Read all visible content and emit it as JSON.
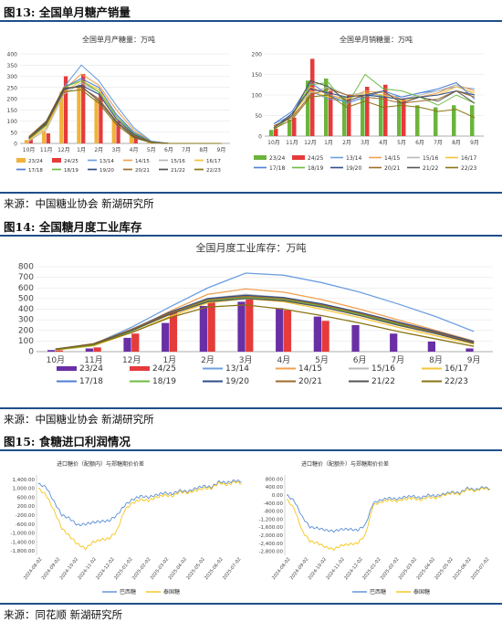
{
  "figures": [
    {
      "title": "图13: 全国单月糖产销量",
      "source": "来源：中国糖业协会  新湖研究所"
    },
    {
      "title": "图14: 全国糖月度工业库存",
      "source": "来源：中国糖业协会  新湖研究所"
    },
    {
      "title": "图15: 食糖进口利润情况",
      "source": "来源：同花顺  新湖研究所"
    }
  ],
  "colors": {
    "23/24": "#6a2fa5",
    "24/25": "#e53b3b",
    "13/14": "#6e9fe0",
    "14/15": "#f0a050",
    "15/16": "#b9b9b9",
    "16/17": "#f3c53a",
    "17/18": "#4c7fd4",
    "18/19": "#6dbb45",
    "19/20": "#2f4f8a",
    "20/21": "#a06a2c",
    "21/22": "#555555",
    "22/23": "#8a7415",
    "production_fig13": "#f0b23a",
    "sales_fig13": "#6cb43c",
    "brazil": "#5b8ed6",
    "thai": "#f5c518",
    "rule": "#1f4f8a"
  },
  "chart_data": [
    {
      "type": "bar",
      "title": "全国单月产糖量：万吨",
      "categories": [
        "10月",
        "11月",
        "12月",
        "1月",
        "2月",
        "3月",
        "4月",
        "5月",
        "6月",
        "7月",
        "8月",
        "9月"
      ],
      "ylim": [
        0,
        400
      ],
      "yticks": [
        0,
        50,
        100,
        150,
        200,
        250,
        300,
        350,
        400
      ],
      "legend": [
        "23/24",
        "24/25",
        "13/14",
        "14/15",
        "15/16",
        "16/17",
        "17/18",
        "18/19",
        "19/20",
        "20/21",
        "21/22",
        "22/23"
      ],
      "legend_position": "bottom",
      "series": [
        {
          "name": "23/24",
          "kind": "bar",
          "color_key": "production_fig13",
          "values": [
            15,
            55,
            230,
            260,
            200,
            110,
            40,
            5,
            0,
            0,
            0,
            0
          ]
        },
        {
          "name": "24/25",
          "kind": "bar",
          "color_key": "24/25",
          "values": [
            20,
            45,
            300,
            310,
            230,
            100,
            35,
            3,
            0,
            0,
            0,
            0
          ]
        },
        {
          "name": "13/14",
          "kind": "line",
          "values": [
            20,
            80,
            250,
            350,
            280,
            170,
            70,
            10,
            0,
            0,
            0,
            0
          ]
        },
        {
          "name": "14/15",
          "kind": "line",
          "values": [
            15,
            70,
            240,
            310,
            260,
            150,
            60,
            8,
            0,
            0,
            0,
            0
          ]
        },
        {
          "name": "15/16",
          "kind": "line",
          "values": [
            10,
            60,
            220,
            270,
            230,
            130,
            50,
            5,
            0,
            0,
            0,
            0
          ]
        },
        {
          "name": "16/17",
          "kind": "line",
          "values": [
            15,
            70,
            230,
            280,
            240,
            120,
            45,
            5,
            0,
            0,
            0,
            0
          ]
        },
        {
          "name": "17/18",
          "kind": "line",
          "values": [
            20,
            85,
            250,
            290,
            250,
            130,
            50,
            8,
            0,
            0,
            0,
            0
          ]
        },
        {
          "name": "18/19",
          "kind": "line",
          "values": [
            20,
            80,
            250,
            280,
            230,
            120,
            45,
            6,
            0,
            0,
            0,
            0
          ]
        },
        {
          "name": "19/20",
          "kind": "line",
          "values": [
            25,
            90,
            240,
            260,
            220,
            110,
            40,
            5,
            0,
            0,
            0,
            0
          ]
        },
        {
          "name": "20/21",
          "kind": "line",
          "values": [
            30,
            100,
            250,
            250,
            200,
            100,
            35,
            5,
            0,
            0,
            0,
            0
          ]
        },
        {
          "name": "21/22",
          "kind": "line",
          "values": [
            25,
            95,
            245,
            255,
            190,
            95,
            30,
            4,
            0,
            0,
            0,
            0
          ]
        },
        {
          "name": "22/23",
          "kind": "line",
          "values": [
            20,
            85,
            230,
            240,
            180,
            85,
            25,
            3,
            0,
            0,
            0,
            0
          ]
        }
      ]
    },
    {
      "type": "bar",
      "title": "全国单月销糖量：万吨",
      "categories": [
        "10月",
        "11月",
        "12月",
        "1月",
        "2月",
        "3月",
        "4月",
        "5月",
        "6月",
        "7月",
        "8月",
        "9月"
      ],
      "ylim": [
        0,
        200
      ],
      "yticks": [
        0,
        50,
        100,
        150,
        200
      ],
      "legend": [
        "23/24",
        "24/25",
        "13/14",
        "14/15",
        "15/16",
        "16/17",
        "17/18",
        "18/19",
        "19/20",
        "20/21",
        "21/22",
        "22/23"
      ],
      "legend_position": "bottom",
      "series": [
        {
          "name": "23/24",
          "kind": "bar",
          "color_key": "sales_fig13",
          "values": [
            15,
            40,
            135,
            140,
            95,
            95,
            100,
            90,
            75,
            70,
            75,
            75
          ]
        },
        {
          "name": "24/25",
          "kind": "bar",
          "color_key": "24/25",
          "values": [
            18,
            45,
            188,
            110,
            100,
            120,
            125,
            90,
            0,
            0,
            0,
            0
          ]
        },
        {
          "name": "13/14",
          "kind": "line",
          "values": [
            30,
            50,
            110,
            90,
            85,
            100,
            100,
            95,
            105,
            110,
            120,
            115
          ]
        },
        {
          "name": "14/15",
          "kind": "line",
          "values": [
            25,
            45,
            120,
            100,
            90,
            110,
            105,
            90,
            95,
            105,
            125,
            110
          ]
        },
        {
          "name": "15/16",
          "kind": "line",
          "values": [
            20,
            55,
            105,
            120,
            100,
            105,
            95,
            90,
            100,
            110,
            125,
            100
          ]
        },
        {
          "name": "16/17",
          "kind": "line",
          "values": [
            22,
            50,
            110,
            95,
            90,
            105,
            100,
            85,
            95,
            100,
            120,
            105
          ]
        },
        {
          "name": "17/18",
          "kind": "line",
          "values": [
            30,
            60,
            130,
            100,
            80,
            95,
            110,
            95,
            105,
            115,
            130,
            90
          ]
        },
        {
          "name": "18/19",
          "kind": "line",
          "values": [
            15,
            50,
            125,
            130,
            75,
            150,
            115,
            110,
            95,
            75,
            100,
            80
          ]
        },
        {
          "name": "19/20",
          "kind": "line",
          "values": [
            20,
            55,
            115,
            105,
            95,
            100,
            95,
            90,
            95,
            100,
            110,
            100
          ]
        },
        {
          "name": "20/21",
          "kind": "line",
          "values": [
            25,
            45,
            100,
            115,
            100,
            95,
            90,
            80,
            85,
            90,
            110,
            95
          ]
        },
        {
          "name": "21/22",
          "kind": "line",
          "values": [
            20,
            50,
            135,
            120,
            85,
            100,
            110,
            80,
            95,
            85,
            110,
            80
          ]
        },
        {
          "name": "22/23",
          "kind": "line",
          "values": [
            18,
            40,
            95,
            100,
            70,
            85,
            70,
            75,
            70,
            60,
            65,
            45
          ]
        }
      ]
    },
    {
      "type": "bar",
      "title": "全国月度工业库存：万吨",
      "categories": [
        "10月",
        "11月",
        "12月",
        "1月",
        "2月",
        "3月",
        "4月",
        "5月",
        "6月",
        "7月",
        "8月",
        "9月"
      ],
      "ylim": [
        0,
        800
      ],
      "yticks": [
        0,
        100,
        200,
        300,
        400,
        500,
        600,
        700,
        800
      ],
      "legend": [
        "23/24",
        "24/25",
        "13/14",
        "14/15",
        "15/16",
        "16/17",
        "17/18",
        "18/19",
        "19/20",
        "20/21",
        "21/22",
        "22/23"
      ],
      "legend_position": "bottom",
      "series": [
        {
          "name": "23/24",
          "kind": "bar",
          "color_key": "23/24",
          "values": [
            15,
            30,
            130,
            270,
            430,
            470,
            410,
            330,
            250,
            170,
            95,
            30
          ]
        },
        {
          "name": "24/25",
          "kind": "bar",
          "color_key": "24/25",
          "values": [
            12,
            40,
            170,
            370,
            500,
            490,
            390,
            290,
            0,
            0,
            0,
            0
          ]
        },
        {
          "name": "13/14",
          "kind": "line",
          "values": [
            20,
            70,
            230,
            420,
            600,
            740,
            720,
            650,
            560,
            450,
            330,
            190
          ]
        },
        {
          "name": "14/15",
          "kind": "line",
          "values": [
            20,
            60,
            200,
            380,
            540,
            590,
            560,
            490,
            400,
            300,
            200,
            100
          ]
        },
        {
          "name": "15/16",
          "kind": "line",
          "values": [
            15,
            55,
            190,
            360,
            500,
            540,
            510,
            440,
            350,
            260,
            170,
            80
          ]
        },
        {
          "name": "16/17",
          "kind": "line",
          "values": [
            15,
            55,
            180,
            330,
            460,
            500,
            470,
            400,
            320,
            230,
            150,
            70
          ]
        },
        {
          "name": "17/18",
          "kind": "line",
          "values": [
            20,
            65,
            200,
            360,
            490,
            520,
            500,
            440,
            370,
            280,
            190,
            90
          ]
        },
        {
          "name": "18/19",
          "kind": "line",
          "values": [
            18,
            60,
            195,
            350,
            480,
            510,
            490,
            430,
            350,
            260,
            170,
            80
          ]
        },
        {
          "name": "19/20",
          "kind": "line",
          "values": [
            22,
            70,
            210,
            370,
            500,
            530,
            510,
            450,
            370,
            280,
            190,
            95
          ]
        },
        {
          "name": "20/21",
          "kind": "line",
          "values": [
            25,
            75,
            210,
            360,
            490,
            520,
            500,
            440,
            360,
            270,
            180,
            85
          ]
        },
        {
          "name": "21/22",
          "kind": "line",
          "values": [
            25,
            70,
            200,
            350,
            470,
            500,
            480,
            420,
            340,
            250,
            170,
            80
          ]
        },
        {
          "name": "22/23",
          "kind": "line",
          "values": [
            20,
            65,
            180,
            320,
            420,
            440,
            400,
            340,
            270,
            190,
            120,
            50
          ]
        }
      ]
    },
    {
      "type": "line",
      "title": "进口糖价（配额内）与郑糖期价价差",
      "ylim": [
        -2000,
        1600
      ],
      "yticks": [
        1400,
        1000,
        600,
        200,
        -200,
        -600,
        -1000,
        -1400,
        -1800
      ],
      "ytick_labels": [
        "1,400.00",
        "1,000.00",
        "600.00",
        "200.00",
        "-200.00",
        "-600.00",
        "-1,000.00",
        "-1,400.00",
        "-1,800.00"
      ],
      "x_labels": [
        "2024-08-02",
        "2024-09-02",
        "2024-10-02",
        "2024-11-02",
        "2024-12-02",
        "2025-01-02",
        "2025-02-02",
        "2025-03-02",
        "2025-04-02",
        "2025-05-02",
        "2025-06-02",
        "2025-07-02"
      ],
      "legend": [
        "巴西糖",
        "泰国糖"
      ],
      "legend_position": "bottom",
      "series": [
        {
          "name": "巴西糖",
          "color_key": "brazil",
          "values": [
            1200,
            1050,
            400,
            -200,
            -350,
            -650,
            -600,
            -520,
            -480,
            -450,
            -200,
            250,
            500,
            650,
            600,
            700,
            800,
            750,
            900,
            850,
            1000,
            1100,
            1050,
            1300,
            1250,
            1350,
            1300
          ]
        },
        {
          "name": "泰国糖",
          "color_key": "thai",
          "values": [
            1000,
            700,
            0,
            -800,
            -1150,
            -1500,
            -1700,
            -1400,
            -1300,
            -1250,
            -900,
            50,
            350,
            500,
            450,
            600,
            700,
            650,
            850,
            800,
            900,
            1000,
            1000,
            1250,
            1150,
            1300,
            1200
          ]
        }
      ]
    },
    {
      "type": "line",
      "title": "进口糖价（配额外）与郑糖期价价差",
      "ylim": [
        -3000,
        1000
      ],
      "yticks": [
        800,
        400,
        0,
        -400,
        -800,
        -1200,
        -1600,
        -2000,
        -2400,
        -2800
      ],
      "ytick_labels": [
        "800.00",
        "400.00",
        "0.00",
        "-400.00",
        "-800.00",
        "-1,200.00",
        "-1,600.00",
        "-2,000.00",
        "-2,400.00",
        "-2,800.00"
      ],
      "x_labels": [
        "2024-08-02",
        "2024-09-02",
        "2024-10-02",
        "2024-11-02",
        "2024-12-02",
        "2025-01-02",
        "2025-02-02",
        "2025-03-02",
        "2025-04-02",
        "2025-05-02",
        "2025-06-02",
        "2025-07-02"
      ],
      "legend": [
        "巴西糖",
        "泰国糖"
      ],
      "legend_position": "bottom",
      "series": [
        {
          "name": "巴西糖",
          "color_key": "brazil",
          "values": [
            0,
            -300,
            -1100,
            -1600,
            -1650,
            -1750,
            -1800,
            -1700,
            -1700,
            -1750,
            -1500,
            -400,
            -250,
            -150,
            -200,
            -100,
            -50,
            -150,
            0,
            -50,
            50,
            150,
            100,
            350,
            250,
            400,
            300
          ]
        },
        {
          "name": "泰国糖",
          "color_key": "thai",
          "values": [
            -200,
            -700,
            -1800,
            -2300,
            -2400,
            -2600,
            -2700,
            -2500,
            -2450,
            -2400,
            -2000,
            -500,
            -350,
            -250,
            -300,
            -200,
            -150,
            -250,
            -100,
            -150,
            0,
            100,
            50,
            300,
            200,
            350,
            250
          ]
        }
      ]
    }
  ]
}
